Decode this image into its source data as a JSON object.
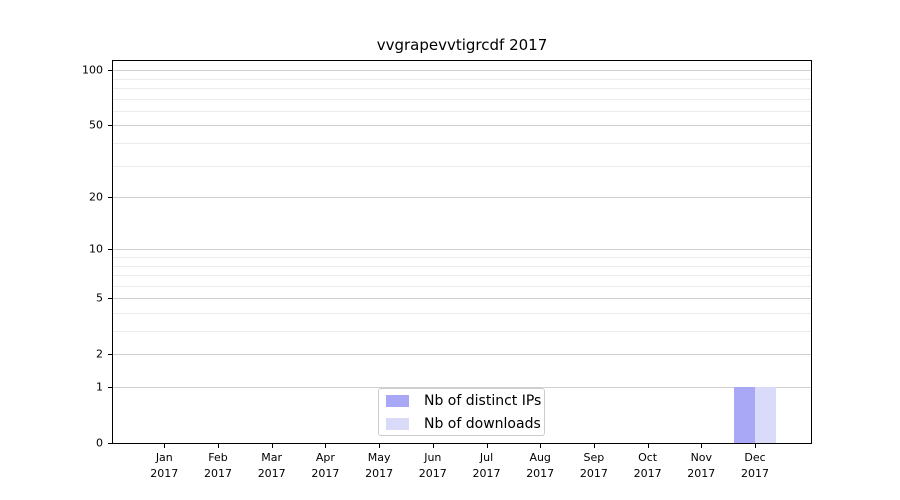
{
  "chart_data": {
    "type": "bar",
    "title": "vvgrapevvtigrcdf 2017",
    "categories": [
      "Jan 2017",
      "Feb 2017",
      "Mar 2017",
      "Apr 2017",
      "May 2017",
      "Jun 2017",
      "Jul 2017",
      "Aug 2017",
      "Sep 2017",
      "Oct 2017",
      "Nov 2017",
      "Dec 2017"
    ],
    "series": [
      {
        "name": "Nb of distinct IPs",
        "color": "#a8a8f6",
        "values": [
          0,
          0,
          0,
          0,
          0,
          0,
          0,
          0,
          0,
          0,
          0,
          1
        ]
      },
      {
        "name": "Nb of downloads",
        "color": "#dadaf9",
        "values": [
          0,
          0,
          0,
          0,
          0,
          0,
          0,
          0,
          0,
          0,
          0,
          1
        ]
      }
    ],
    "yscale": "log1p",
    "ylim": [
      0,
      112
    ],
    "yticks_major": [
      0,
      1,
      2,
      5,
      10,
      20,
      50,
      100
    ],
    "yticks_minor": [
      3,
      4,
      6,
      7,
      8,
      9,
      30,
      40,
      60,
      70,
      80,
      90
    ],
    "grid": "horizontal",
    "legend": {
      "position": "lower-center"
    },
    "colors": {
      "major_grid": "#d0d0d0",
      "minor_grid": "#ebebeb",
      "spine": "#000000",
      "text": "#000000",
      "background": "#ffffff"
    }
  }
}
